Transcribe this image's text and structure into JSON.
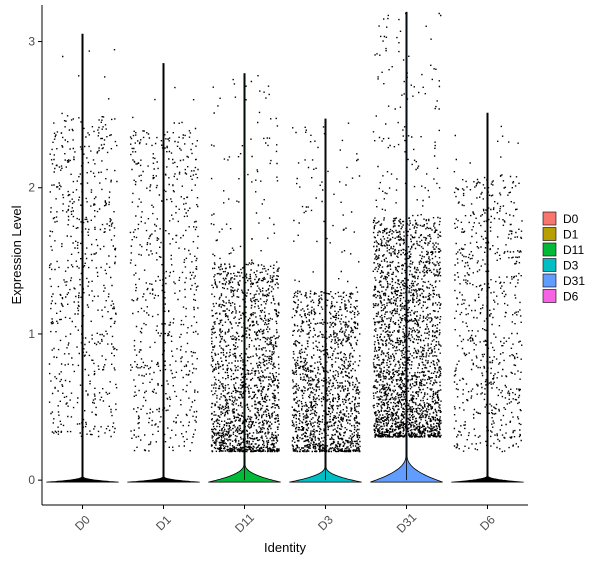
{
  "chart_data": {
    "type": "violin",
    "xlabel": "Identity",
    "ylabel": "Expression Level",
    "categories": [
      "D0",
      "D1",
      "D11",
      "D3",
      "D31",
      "D6"
    ],
    "ylim": [
      -0.17,
      3.25
    ],
    "yticks": [
      0,
      1,
      2,
      3
    ],
    "legend_position": "right",
    "series": [
      {
        "name": "D0",
        "color": "#F8766D",
        "max": 3.05,
        "fraction_expressing": 0.1,
        "typical_nonzero_range": [
          0.3,
          2.5
        ]
      },
      {
        "name": "D1",
        "color": "#B79F00",
        "max": 2.85,
        "fraction_expressing": 0.1,
        "typical_nonzero_range": [
          0.2,
          2.4
        ]
      },
      {
        "name": "D11",
        "color": "#00BA38",
        "max": 2.78,
        "fraction_expressing": 0.45,
        "typical_nonzero_range": [
          0.2,
          1.5
        ]
      },
      {
        "name": "D3",
        "color": "#00BFC4",
        "max": 2.47,
        "fraction_expressing": 0.38,
        "typical_nonzero_range": [
          0.2,
          1.3
        ]
      },
      {
        "name": "D31",
        "color": "#619CFF",
        "max": 3.2,
        "fraction_expressing": 0.7,
        "typical_nonzero_range": [
          0.3,
          1.8
        ]
      },
      {
        "name": "D6",
        "color": "#F564E3",
        "max": 2.51,
        "fraction_expressing": 0.12,
        "typical_nonzero_range": [
          0.2,
          2.1
        ]
      }
    ]
  }
}
